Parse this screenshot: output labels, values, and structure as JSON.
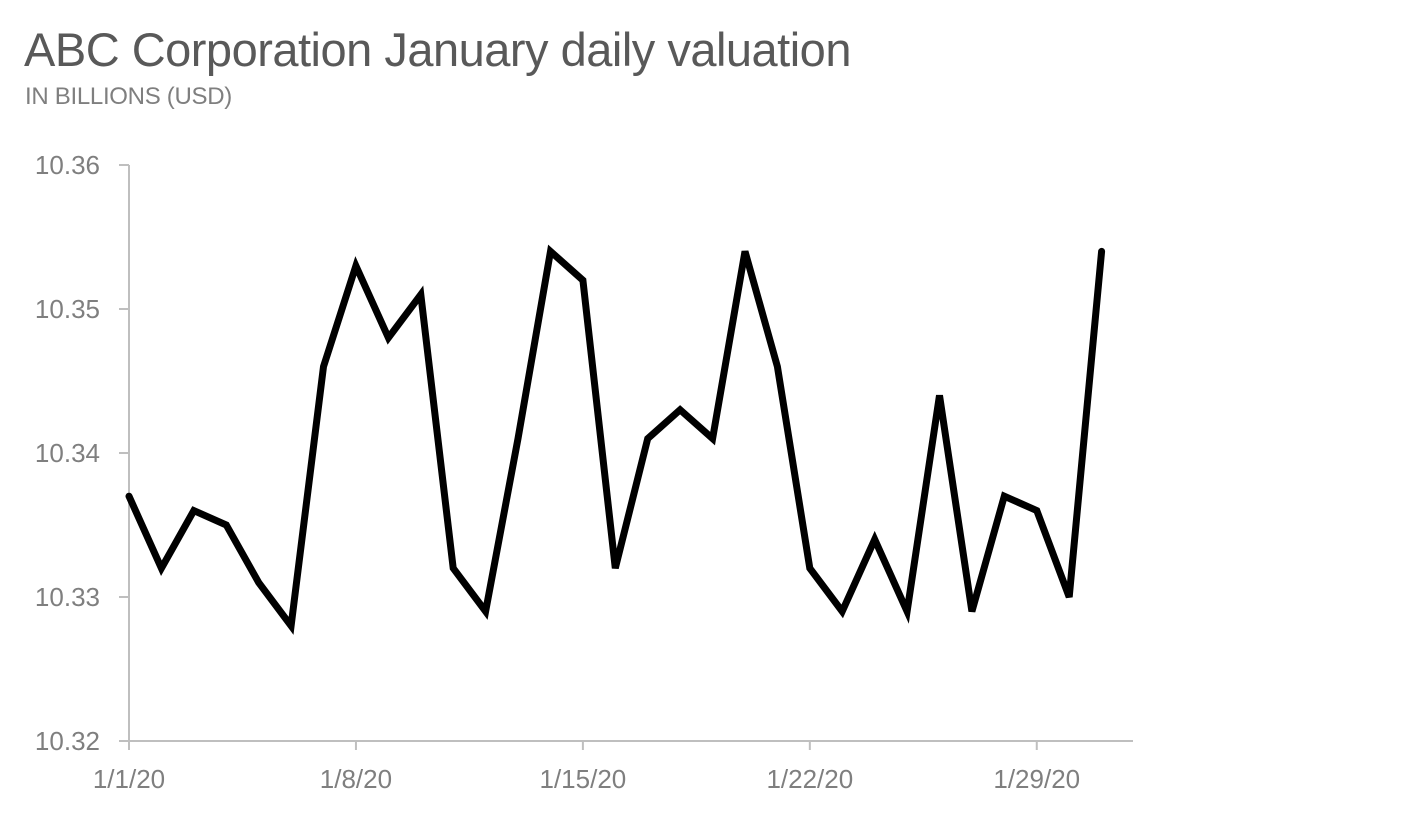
{
  "chart_data": {
    "type": "line",
    "title": "ABC Corporation January daily valuation",
    "subtitle": "IN BILLIONS (USD)",
    "xlabel": "",
    "ylabel": "",
    "ylim": [
      10.32,
      10.36
    ],
    "yticks": [
      "10.36",
      "10.35",
      "10.34",
      "10.33",
      "10.32"
    ],
    "ytick_values": [
      10.36,
      10.35,
      10.34,
      10.33,
      10.32
    ],
    "xticks": [
      "1/1/20",
      "1/8/20",
      "1/15/20",
      "1/22/20",
      "1/29/20"
    ],
    "xtick_day_index": [
      0,
      7,
      14,
      21,
      28
    ],
    "grid": false,
    "legend": null,
    "series": [
      {
        "name": "Valuation",
        "color": "#000000",
        "x": [
          "1/1/20",
          "1/2/20",
          "1/3/20",
          "1/4/20",
          "1/5/20",
          "1/6/20",
          "1/7/20",
          "1/8/20",
          "1/9/20",
          "1/10/20",
          "1/11/20",
          "1/12/20",
          "1/13/20",
          "1/14/20",
          "1/15/20",
          "1/16/20",
          "1/17/20",
          "1/18/20",
          "1/19/20",
          "1/20/20",
          "1/21/20",
          "1/22/20",
          "1/23/20",
          "1/24/20",
          "1/25/20",
          "1/26/20",
          "1/27/20",
          "1/28/20",
          "1/29/20",
          "1/30/20",
          "1/31/20"
        ],
        "values": [
          10.337,
          10.332,
          10.336,
          10.335,
          10.331,
          10.328,
          10.346,
          10.353,
          10.348,
          10.351,
          10.332,
          10.329,
          10.341,
          10.354,
          10.352,
          10.332,
          10.341,
          10.343,
          10.341,
          10.354,
          10.346,
          10.332,
          10.329,
          10.334,
          10.329,
          10.344,
          10.329,
          10.337,
          10.336,
          10.33,
          10.354
        ]
      }
    ]
  },
  "colors": {
    "title": "#595959",
    "tick_text": "#7f7f7f",
    "axis": "#bfbfbf",
    "line": "#000000"
  }
}
